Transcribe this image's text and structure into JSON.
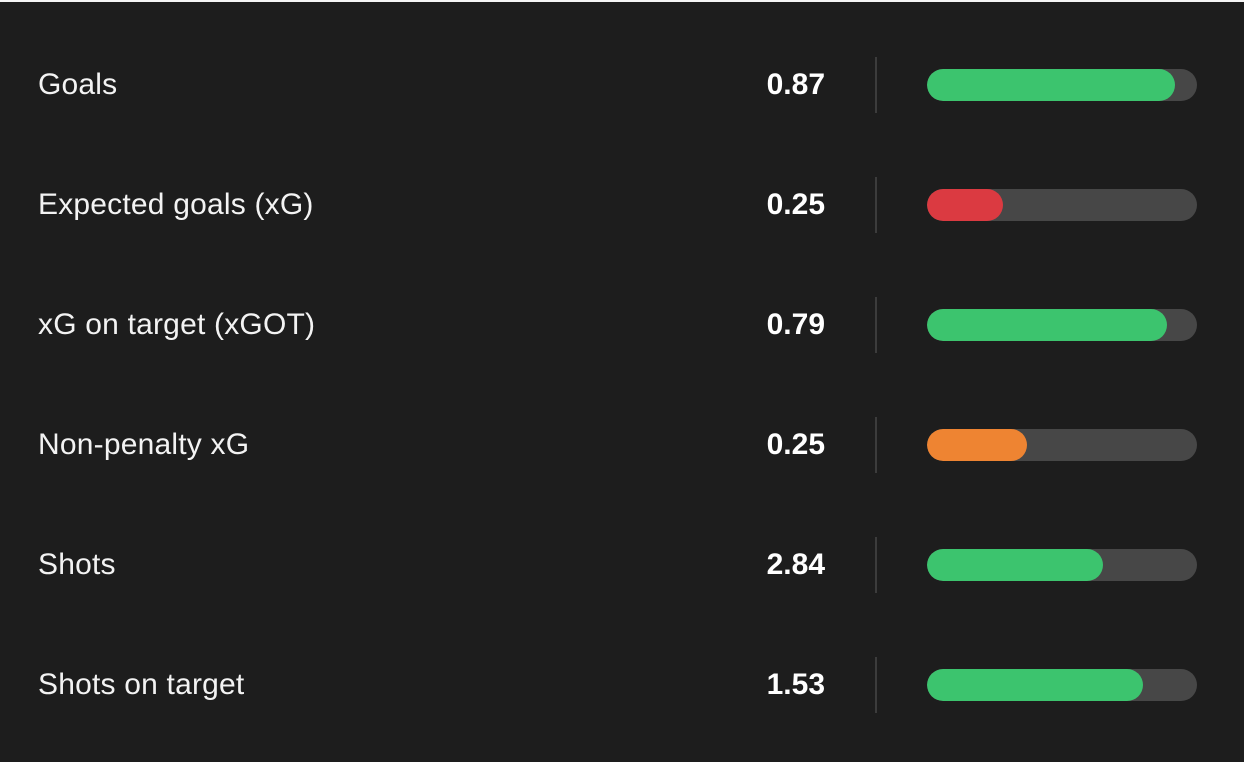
{
  "panel": {
    "background": "#1d1d1d",
    "top_strip_color": "#f5f5f5"
  },
  "colors": {
    "green": "#3cc46e",
    "red": "#db3a41",
    "orange": "#ee8432",
    "track": "#474747",
    "divider": "#3c3c3c",
    "label_text": "#f3f3f3",
    "value_text": "#ffffff"
  },
  "stats": [
    {
      "label": "Goals",
      "value": "0.87",
      "fill_pct": 92,
      "color": "green"
    },
    {
      "label": "Expected goals (xG)",
      "value": "0.25",
      "fill_pct": 28,
      "color": "red"
    },
    {
      "label": "xG on target (xGOT)",
      "value": "0.79",
      "fill_pct": 89,
      "color": "green"
    },
    {
      "label": "Non-penalty xG",
      "value": "0.25",
      "fill_pct": 37,
      "color": "orange"
    },
    {
      "label": "Shots",
      "value": "2.84",
      "fill_pct": 65,
      "color": "green"
    },
    {
      "label": "Shots on target",
      "value": "1.53",
      "fill_pct": 80,
      "color": "green"
    }
  ],
  "chart_data": {
    "type": "bar",
    "orientation": "horizontal",
    "categories": [
      "Goals",
      "Expected goals (xG)",
      "xG on target (xGOT)",
      "Non-penalty xG",
      "Shots",
      "Shots on target"
    ],
    "values": [
      0.87,
      0.25,
      0.79,
      0.25,
      2.84,
      1.53
    ],
    "bar_fill_percent": [
      92,
      28,
      89,
      37,
      65,
      80
    ],
    "bar_colors": [
      "#3cc46e",
      "#db3a41",
      "#3cc46e",
      "#ee8432",
      "#3cc46e",
      "#3cc46e"
    ],
    "title": "",
    "xlabel": "",
    "ylabel": "",
    "legend": false,
    "grid": false,
    "track_color": "#474747",
    "background": "#1d1d1d"
  }
}
